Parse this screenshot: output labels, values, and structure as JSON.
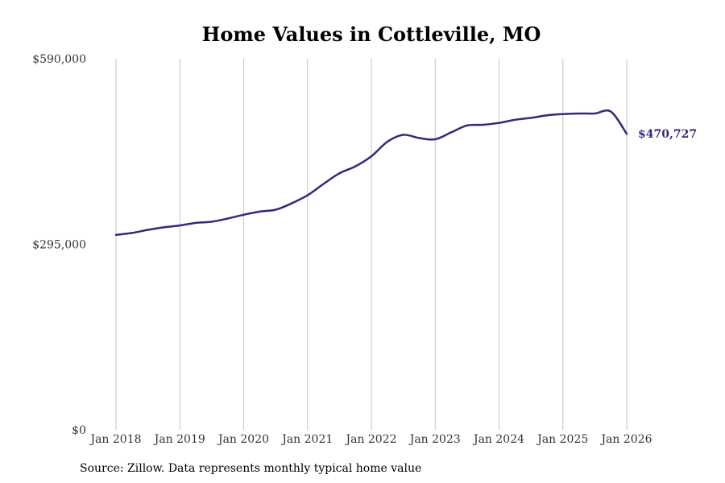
{
  "chart_data": {
    "type": "line",
    "title": "Home Values in Cottleville, MO",
    "xlabel": "",
    "ylabel": "",
    "ylim": [
      0,
      590000
    ],
    "y_ticks": [
      {
        "value": 0,
        "label": "$0"
      },
      {
        "value": 295000,
        "label": "$295,000"
      },
      {
        "value": 590000,
        "label": "$590,000"
      }
    ],
    "x_ticks": [
      {
        "value": 2018.0,
        "label": "Jan 2018"
      },
      {
        "value": 2019.0,
        "label": "Jan 2019"
      },
      {
        "value": 2020.0,
        "label": "Jan 2020"
      },
      {
        "value": 2021.0,
        "label": "Jan 2021"
      },
      {
        "value": 2022.0,
        "label": "Jan 2022"
      },
      {
        "value": 2023.0,
        "label": "Jan 2023"
      },
      {
        "value": 2024.0,
        "label": "Jan 2024"
      },
      {
        "value": 2025.0,
        "label": "Jan 2025"
      },
      {
        "value": 2026.0,
        "label": "Jan 2026"
      }
    ],
    "grid": "vertical",
    "series": [
      {
        "name": "Typical home value",
        "color": "#32297f",
        "x": [
          2018.0,
          2018.25,
          2018.5,
          2018.75,
          2019.0,
          2019.25,
          2019.5,
          2019.75,
          2020.0,
          2020.25,
          2020.5,
          2020.75,
          2021.0,
          2021.25,
          2021.5,
          2021.75,
          2022.0,
          2022.25,
          2022.5,
          2022.75,
          2023.0,
          2023.25,
          2023.5,
          2023.75,
          2024.0,
          2024.25,
          2024.5,
          2024.75,
          2025.0,
          2025.25,
          2025.5,
          2025.75,
          2026.0
        ],
        "values": [
          310000,
          313000,
          318000,
          322000,
          325000,
          329000,
          331000,
          336000,
          342000,
          347000,
          350000,
          360000,
          373000,
          391000,
          408000,
          419000,
          435000,
          458000,
          469000,
          464000,
          462000,
          473000,
          484000,
          485000,
          488000,
          493000,
          496000,
          500000,
          502000,
          503000,
          503000,
          506000,
          470727
        ]
      }
    ],
    "end_label": {
      "value": 470727,
      "label": "$470,727"
    }
  },
  "footer": {
    "source": "Source: Zillow. Data represents monthly typical home value"
  }
}
